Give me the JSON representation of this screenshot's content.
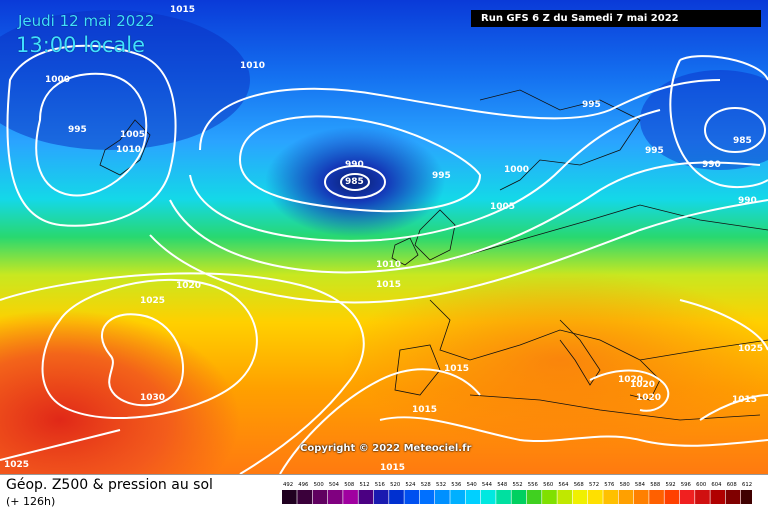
{
  "header": {
    "date": "Jeudi 12 mai 2022",
    "time": "13:00 locale",
    "run": "Run GFS 6 Z du Samedi 7 mai 2022"
  },
  "copyright": "Copyright © 2022 Meteociel.fr",
  "footer": {
    "title": "Géop. Z500 & pression au sol",
    "subtitle": "(+ 126h)"
  },
  "isobar_labels": [
    "1015",
    "1010",
    "1000",
    "995",
    "1005",
    "1010",
    "990",
    "985",
    "995",
    "995",
    "1000",
    "1005",
    "1010",
    "1015",
    "995",
    "990",
    "985",
    "990",
    "1025",
    "1020",
    "1030",
    "1025",
    "1015",
    "1015",
    "1015",
    "1020",
    "1020",
    "1020",
    "1015",
    "1025"
  ],
  "legend": {
    "values": [
      "492",
      "496",
      "500",
      "504",
      "508",
      "512",
      "516",
      "520",
      "524",
      "528",
      "532",
      "536",
      "540",
      "544",
      "548",
      "552",
      "556",
      "560",
      "564",
      "568",
      "572",
      "576",
      "580",
      "584",
      "588",
      "592",
      "596",
      "600",
      "604",
      "608",
      "612"
    ],
    "colors": [
      "#200020",
      "#3a003a",
      "#600060",
      "#800080",
      "#a000a0",
      "#4b0082",
      "#1a1ab0",
      "#0030d0",
      "#0050f0",
      "#0070ff",
      "#0090ff",
      "#00b0ff",
      "#00d0ff",
      "#00e8e0",
      "#00e0a0",
      "#00d060",
      "#40d020",
      "#80e000",
      "#c0e800",
      "#f0f000",
      "#ffe000",
      "#ffc000",
      "#ffa000",
      "#ff8000",
      "#ff6000",
      "#ff4000",
      "#f02020",
      "#d01010",
      "#b00000",
      "#800000",
      "#400000"
    ]
  },
  "colors": {
    "isobar": "#ffffff",
    "run_box_bg": "#000000",
    "header_text": "#40e0ff"
  }
}
